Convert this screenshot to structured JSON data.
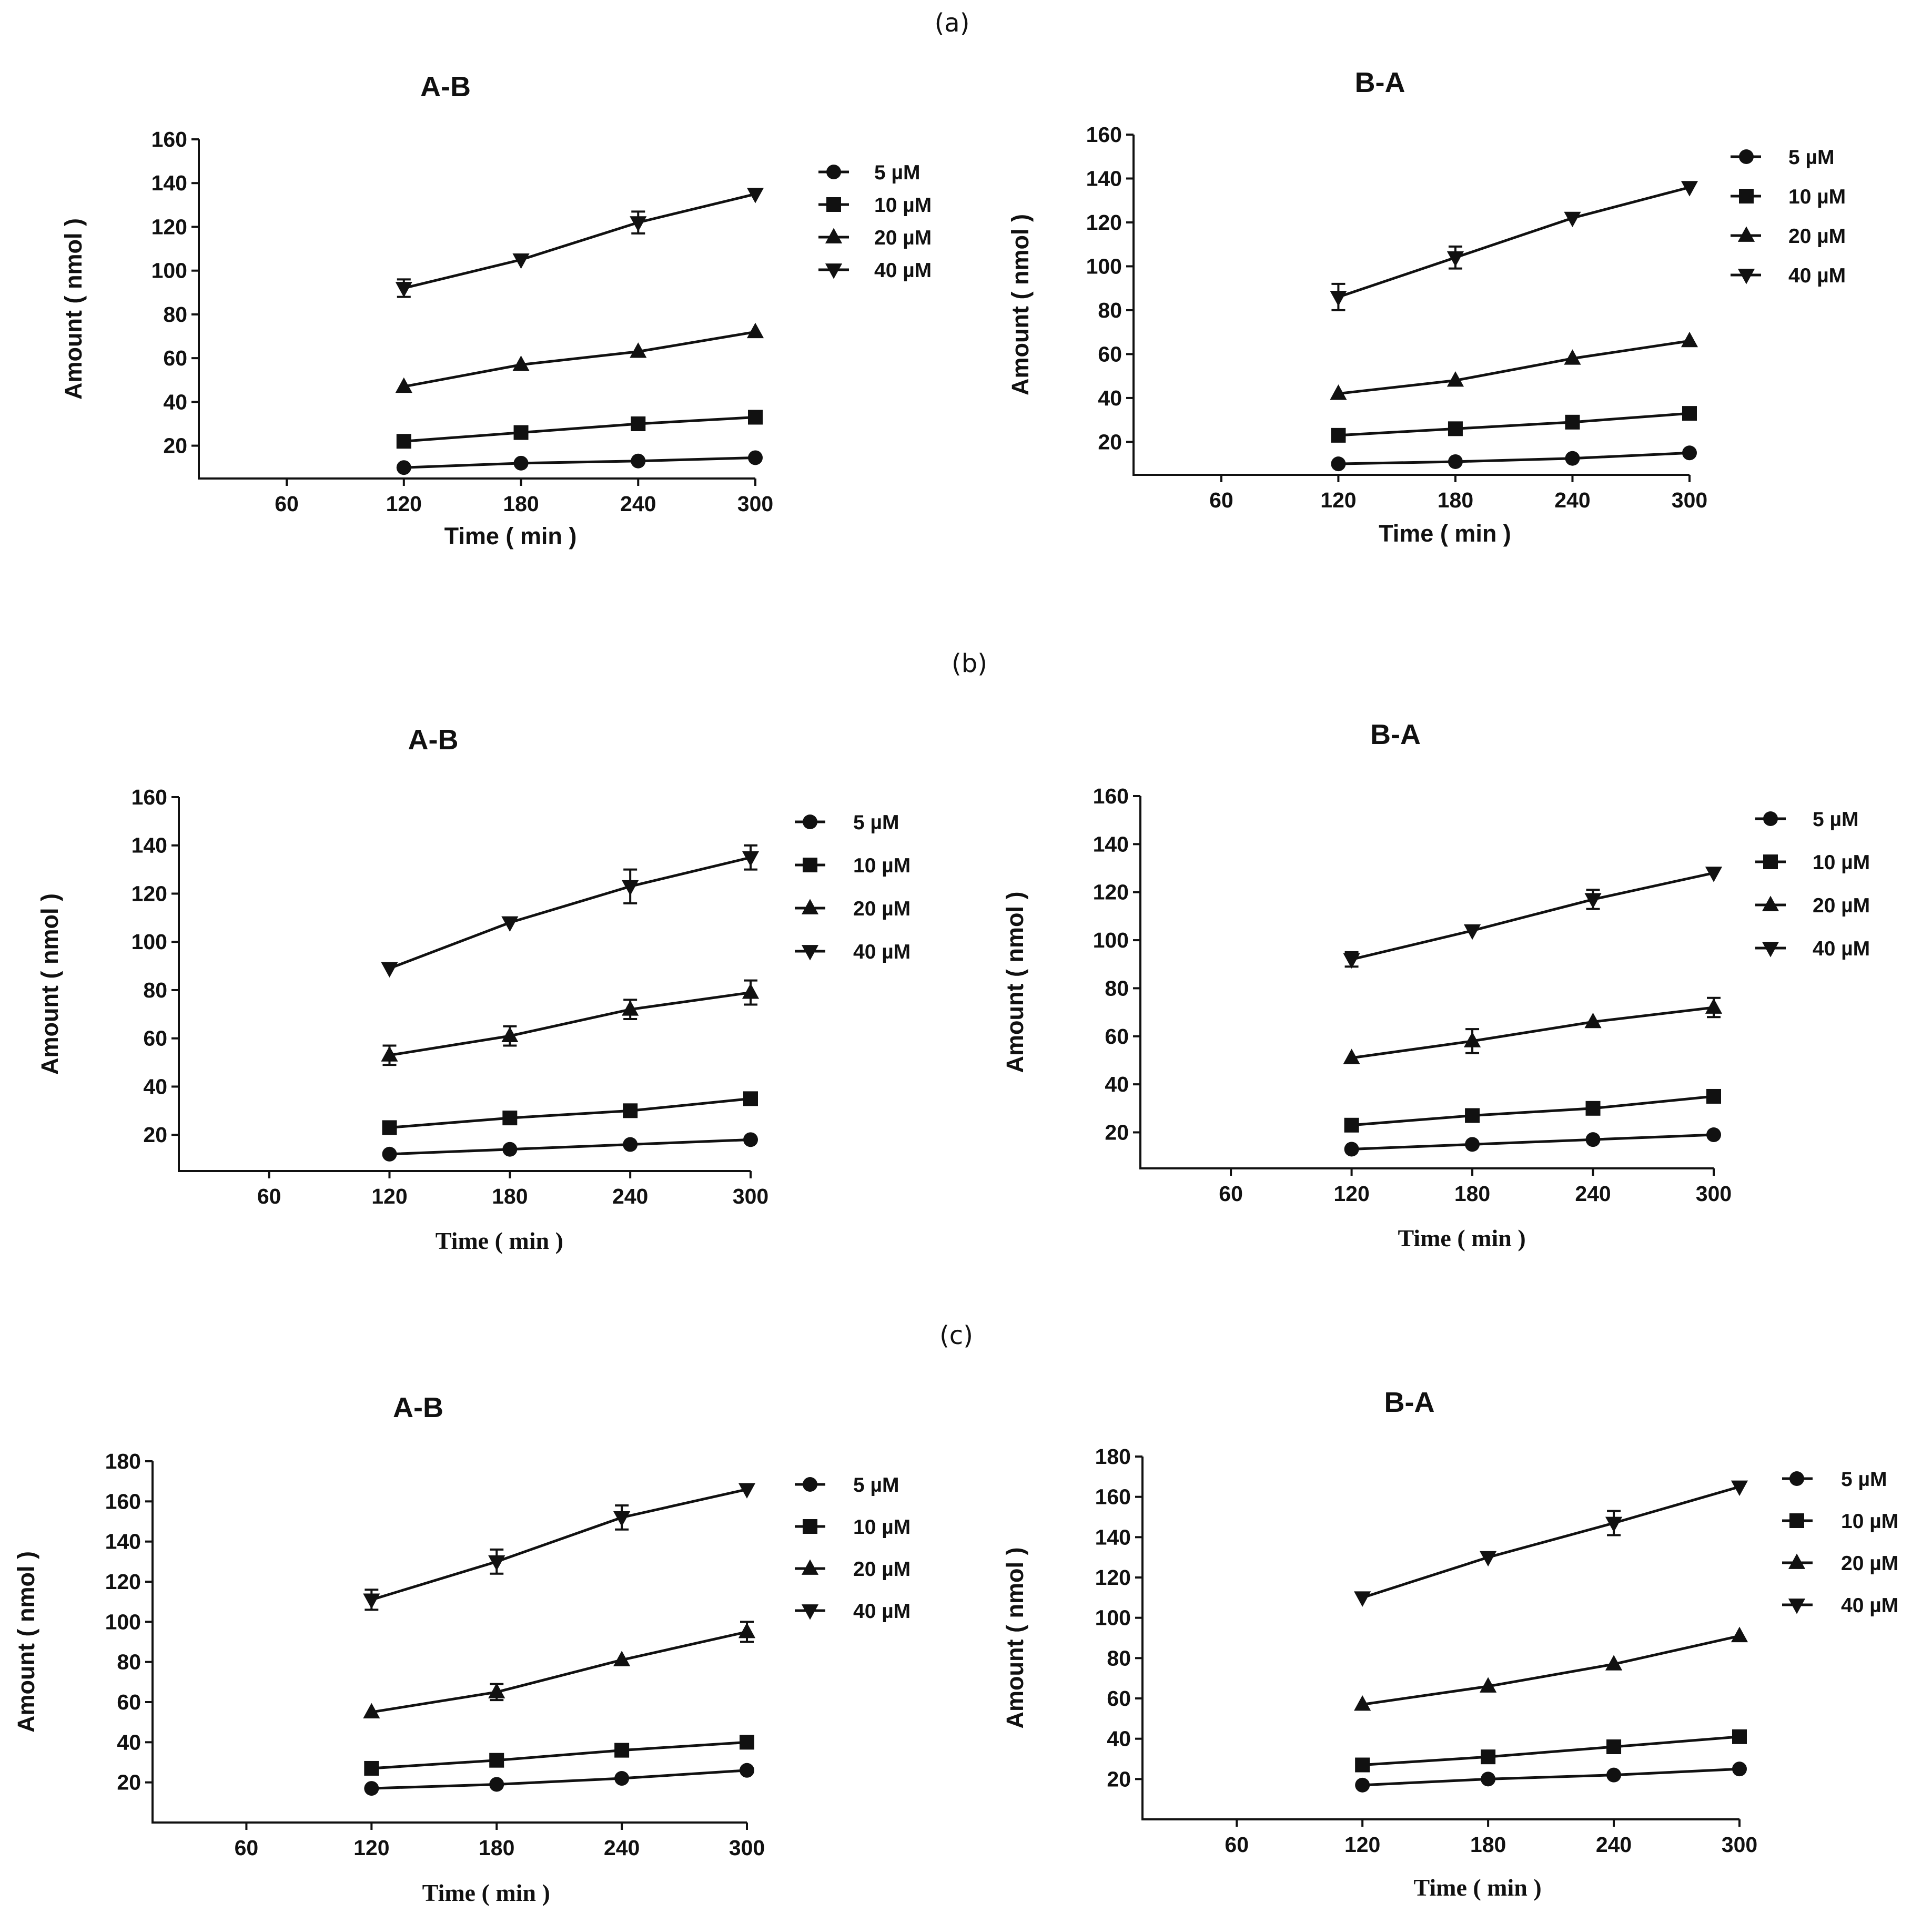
{
  "figure": {
    "panel_labels": [
      "(a)",
      "(b)",
      "(c)"
    ]
  },
  "chart_data": [
    {
      "type": "line",
      "panel": "(a)",
      "title": "A-B",
      "xlabel": "Time ( min )",
      "ylabel": "Amount ( nmol )",
      "xlim": [
        15,
        300
      ],
      "ylim": [
        5,
        160
      ],
      "xticks": [
        60,
        120,
        180,
        240,
        300
      ],
      "yticks": [
        20,
        40,
        60,
        80,
        100,
        120,
        140,
        160
      ],
      "x": [
        120,
        180,
        240,
        300
      ],
      "series": [
        {
          "name": "5 µM",
          "marker": "circle",
          "values": [
            10,
            12,
            13,
            14.5
          ],
          "errors": [
            0,
            0,
            0,
            0
          ]
        },
        {
          "name": "10 µM",
          "marker": "square",
          "values": [
            22,
            26,
            30,
            33
          ],
          "errors": [
            0,
            0,
            0,
            0
          ]
        },
        {
          "name": "20 µM",
          "marker": "triangle-up",
          "values": [
            47,
            57,
            63,
            72
          ],
          "errors": [
            0,
            0,
            0,
            0
          ]
        },
        {
          "name": "40 µM",
          "marker": "triangle-down",
          "values": [
            92,
            105,
            122,
            135
          ],
          "errors": [
            4,
            0,
            5,
            0
          ]
        }
      ]
    },
    {
      "type": "line",
      "panel": "(a)",
      "title": "B-A",
      "xlabel": "Time ( min )",
      "ylabel": "Amount ( nmol )",
      "xlim": [
        15,
        300
      ],
      "ylim": [
        5,
        160
      ],
      "xticks": [
        60,
        120,
        180,
        240,
        300
      ],
      "yticks": [
        20,
        40,
        60,
        80,
        100,
        120,
        140,
        160
      ],
      "x": [
        120,
        180,
        240,
        300
      ],
      "series": [
        {
          "name": "5 µM",
          "marker": "circle",
          "values": [
            10,
            11,
            12.5,
            15
          ],
          "errors": [
            0,
            0,
            0,
            0
          ]
        },
        {
          "name": "10 µM",
          "marker": "square",
          "values": [
            23,
            26,
            29,
            33
          ],
          "errors": [
            0,
            0,
            0,
            0
          ]
        },
        {
          "name": "20 µM",
          "marker": "triangle-up",
          "values": [
            42,
            48,
            58,
            66
          ],
          "errors": [
            0,
            0,
            0,
            0
          ]
        },
        {
          "name": "40 µM",
          "marker": "triangle-down",
          "values": [
            86,
            104,
            122,
            136
          ],
          "errors": [
            6,
            5,
            0,
            0
          ]
        }
      ]
    },
    {
      "type": "line",
      "panel": "(b)",
      "title": "A-B",
      "xlabel": "Time ( min )",
      "ylabel": "Amount ( nmol )",
      "xlim": [
        15,
        300
      ],
      "ylim": [
        5,
        160
      ],
      "xticks": [
        60,
        120,
        180,
        240,
        300
      ],
      "yticks": [
        20,
        40,
        60,
        80,
        100,
        120,
        140,
        160
      ],
      "x": [
        120,
        180,
        240,
        300
      ],
      "series": [
        {
          "name": "5 µM",
          "marker": "circle",
          "values": [
            12,
            14,
            16,
            18
          ],
          "errors": [
            0,
            0,
            0,
            0
          ]
        },
        {
          "name": "10 µM",
          "marker": "square",
          "values": [
            23,
            27,
            30,
            35
          ],
          "errors": [
            0,
            0,
            0,
            0
          ]
        },
        {
          "name": "20 µM",
          "marker": "triangle-up",
          "values": [
            53,
            61,
            72,
            79
          ],
          "errors": [
            4,
            4,
            4,
            5
          ]
        },
        {
          "name": "40 µM",
          "marker": "triangle-down",
          "values": [
            89,
            108,
            123,
            135
          ],
          "errors": [
            0,
            0,
            7,
            5
          ]
        }
      ]
    },
    {
      "type": "line",
      "panel": "(b)",
      "title": "B-A",
      "xlabel": "Time ( min )",
      "ylabel": "Amount ( nmol )",
      "xlim": [
        15,
        300
      ],
      "ylim": [
        5,
        160
      ],
      "xticks": [
        60,
        120,
        180,
        240,
        300
      ],
      "yticks": [
        20,
        40,
        60,
        80,
        100,
        120,
        140,
        160
      ],
      "x": [
        120,
        180,
        240,
        300
      ],
      "series": [
        {
          "name": "5 µM",
          "marker": "circle",
          "values": [
            13,
            15,
            17,
            19
          ],
          "errors": [
            0,
            0,
            0,
            0
          ]
        },
        {
          "name": "10 µM",
          "marker": "square",
          "values": [
            23,
            27,
            30,
            35
          ],
          "errors": [
            0,
            0,
            0,
            0
          ]
        },
        {
          "name": "20 µM",
          "marker": "triangle-up",
          "values": [
            51,
            58,
            66,
            72
          ],
          "errors": [
            0,
            5,
            0,
            4
          ]
        },
        {
          "name": "40 µM",
          "marker": "triangle-down",
          "values": [
            92,
            104,
            117,
            128
          ],
          "errors": [
            3,
            0,
            4,
            0
          ]
        }
      ]
    },
    {
      "type": "line",
      "panel": "(c)",
      "title": "A-B",
      "xlabel": "Time ( min )",
      "ylabel": "Amount ( nmol )",
      "xlim": [
        15,
        300
      ],
      "ylim": [
        0,
        180
      ],
      "xticks": [
        60,
        120,
        180,
        240,
        300
      ],
      "yticks": [
        20,
        40,
        60,
        80,
        100,
        120,
        140,
        160,
        180
      ],
      "x": [
        120,
        180,
        240,
        300
      ],
      "series": [
        {
          "name": "5 µM",
          "marker": "circle",
          "values": [
            17,
            19,
            22,
            26
          ],
          "errors": [
            0,
            0,
            0,
            0
          ]
        },
        {
          "name": "10 µM",
          "marker": "square",
          "values": [
            27,
            31,
            36,
            40
          ],
          "errors": [
            0,
            0,
            0,
            0
          ]
        },
        {
          "name": "20 µM",
          "marker": "triangle-up",
          "values": [
            55,
            65,
            81,
            95
          ],
          "errors": [
            0,
            4,
            0,
            5
          ]
        },
        {
          "name": "40 µM",
          "marker": "triangle-down",
          "values": [
            111,
            130,
            152,
            166
          ],
          "errors": [
            5,
            6,
            6,
            0
          ]
        }
      ]
    },
    {
      "type": "line",
      "panel": "(c)",
      "title": "B-A",
      "xlabel": "Time ( min )",
      "ylabel": "Amount ( nmol )",
      "xlim": [
        15,
        300
      ],
      "ylim": [
        0,
        180
      ],
      "xticks": [
        60,
        120,
        180,
        240,
        300
      ],
      "yticks": [
        20,
        40,
        60,
        80,
        100,
        120,
        140,
        160,
        180
      ],
      "x": [
        120,
        180,
        240,
        300
      ],
      "series": [
        {
          "name": "5 µM",
          "marker": "circle",
          "values": [
            17,
            20,
            22,
            25
          ],
          "errors": [
            0,
            0,
            0,
            0
          ]
        },
        {
          "name": "10 µM",
          "marker": "square",
          "values": [
            27,
            31,
            36,
            41
          ],
          "errors": [
            0,
            0,
            0,
            0
          ]
        },
        {
          "name": "20 µM",
          "marker": "triangle-up",
          "values": [
            57,
            66,
            77,
            91
          ],
          "errors": [
            0,
            0,
            0,
            0
          ]
        },
        {
          "name": "40 µM",
          "marker": "triangle-down",
          "values": [
            110,
            130,
            147,
            165
          ],
          "errors": [
            0,
            0,
            6,
            0
          ]
        }
      ]
    }
  ]
}
